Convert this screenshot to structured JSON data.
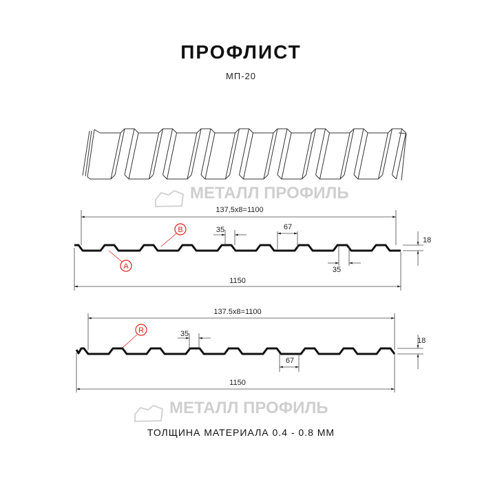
{
  "header": {
    "title": "ПРОФЛИСТ",
    "subtitle": "МП-20"
  },
  "watermark": {
    "text": "МЕТАЛЛ ПРОФИЛЬ"
  },
  "profile_1": {
    "pitch_label": "137,5x8=1100",
    "width_label": "1150",
    "crest_label": "35",
    "valley_label": "67",
    "height_label": "18",
    "bottom_label": "35",
    "marker_a": "A",
    "marker_b": "B"
  },
  "profile_2": {
    "pitch_label": "137.5x8=1100",
    "width_label": "1150",
    "crest_label": "35",
    "valley_label": "67",
    "height_label": "18",
    "marker_r": "R"
  },
  "footer": {
    "thickness": "ТОЛЩИНА МАТЕРИАЛА 0.4 - 0.8 ММ"
  },
  "colors": {
    "line": "#111111",
    "marker": "#e0201b",
    "watermark": "#cfcfcf"
  }
}
